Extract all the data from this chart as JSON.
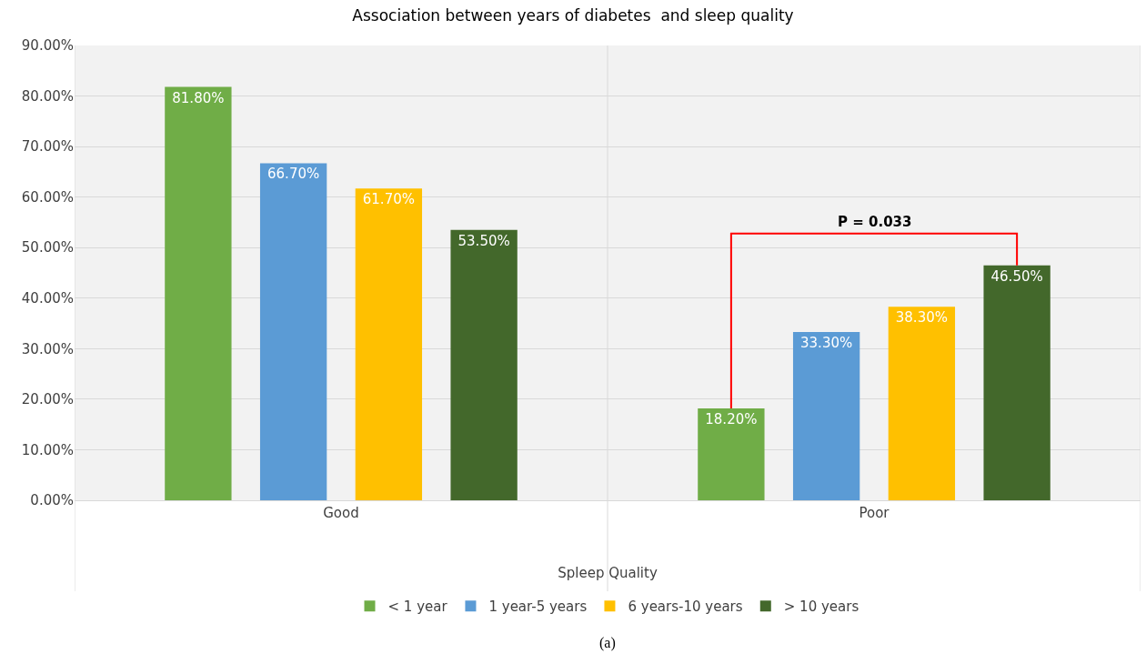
{
  "chart_data": {
    "type": "bar",
    "title": "Association between years of diabetes  and sleep quality",
    "xlabel": "Spleep Quality",
    "categories": [
      "Good",
      "Poor"
    ],
    "series": [
      {
        "name": "< 1 year",
        "color": "#70ad47",
        "values": [
          81.8,
          18.2
        ],
        "value_labels": [
          "81.80%",
          "18.20%"
        ]
      },
      {
        "name": "1 year-5 years",
        "color": "#5b9bd5",
        "values": [
          66.7,
          33.3
        ],
        "value_labels": [
          "66.70%",
          "33.30%"
        ]
      },
      {
        "name": "6 years-10 years",
        "color": "#ffc000",
        "values": [
          61.7,
          38.3
        ],
        "value_labels": [
          "61.70%",
          "38.30%"
        ]
      },
      {
        "name": "> 10 years",
        "color": "#43682b",
        "values": [
          53.5,
          46.5
        ],
        "value_labels": [
          "53.50%",
          "46.50%"
        ]
      }
    ],
    "ylim": [
      0,
      90
    ],
    "yticks": [
      {
        "value": 0,
        "label": "0.00%"
      },
      {
        "value": 10,
        "label": "10.00%"
      },
      {
        "value": 20,
        "label": "20.00%"
      },
      {
        "value": 30,
        "label": "30.00%"
      },
      {
        "value": 40,
        "label": "40.00%"
      },
      {
        "value": 50,
        "label": "50.00%"
      },
      {
        "value": 60,
        "label": "60.00%"
      },
      {
        "value": 70,
        "label": "70.00%"
      },
      {
        "value": 80,
        "label": "80.00%"
      },
      {
        "value": 90,
        "label": "90.00%"
      }
    ],
    "grid": true,
    "legend": "bottom",
    "annotations": [
      "P = 0.033",
      "(a)"
    ]
  }
}
